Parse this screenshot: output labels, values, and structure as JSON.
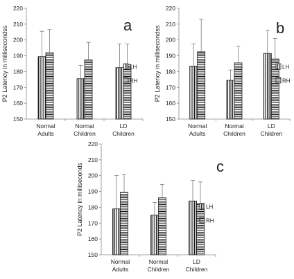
{
  "chart_data": [
    {
      "type": "bar",
      "panel": "a",
      "ylabel": "P2  Latency in millisecondss",
      "ylim": [
        150,
        220
      ],
      "yticks": [
        150,
        160,
        170,
        180,
        190,
        200,
        210,
        220
      ],
      "categories": [
        "Normal|Adults",
        "Normal|Children",
        "LD|Children"
      ],
      "grid": false,
      "legend_position": "right",
      "error_bars": "upper only",
      "series": [
        {
          "name": "LH",
          "pattern": "vertical-stripes",
          "values": [
            189.5,
            175.5,
            182.5
          ],
          "errors": [
            16,
            8.5,
            15
          ]
        },
        {
          "name": "RH",
          "pattern": "horizontal-stripes",
          "values": [
            192,
            187.5,
            184.5
          ],
          "errors": [
            14.5,
            11,
            13
          ]
        }
      ]
    },
    {
      "type": "bar",
      "panel": "b",
      "ylabel": "P2  Latency in millisecondss",
      "ylim": [
        150,
        220
      ],
      "yticks": [
        150,
        160,
        170,
        180,
        190,
        200,
        210,
        220
      ],
      "categories": [
        "Normal|Adults",
        "Normal|Children",
        "LD|Children"
      ],
      "grid": false,
      "legend_position": "right",
      "error_bars": "upper only",
      "series": [
        {
          "name": "LH",
          "pattern": "vertical-stripes",
          "values": [
            183.5,
            174.5,
            191.5
          ],
          "errors": [
            14,
            6.5,
            14.5
          ]
        },
        {
          "name": "RH",
          "pattern": "horizontal-stripes",
          "values": [
            192.5,
            185.5,
            188
          ],
          "errors": [
            20.5,
            10.5,
            13
          ]
        }
      ]
    },
    {
      "type": "bar",
      "panel": "c",
      "ylabel": "P2  Latency in milliseconds",
      "ylim": [
        150,
        220
      ],
      "yticks": [
        150,
        160,
        170,
        180,
        190,
        200,
        210,
        220
      ],
      "categories": [
        "Normal|Adults",
        "Normal|Children",
        "LD|Children"
      ],
      "grid": false,
      "legend_position": "right",
      "error_bars": "upper only",
      "series": [
        {
          "name": "LH",
          "pattern": "vertical-stripes",
          "values": [
            179,
            175,
            184
          ],
          "errors": [
            21,
            8,
            13
          ]
        },
        {
          "name": "RH",
          "pattern": "horizontal-stripes",
          "values": [
            189.5,
            186,
            182.5
          ],
          "errors": [
            11,
            8.5,
            13.5
          ]
        }
      ]
    }
  ]
}
